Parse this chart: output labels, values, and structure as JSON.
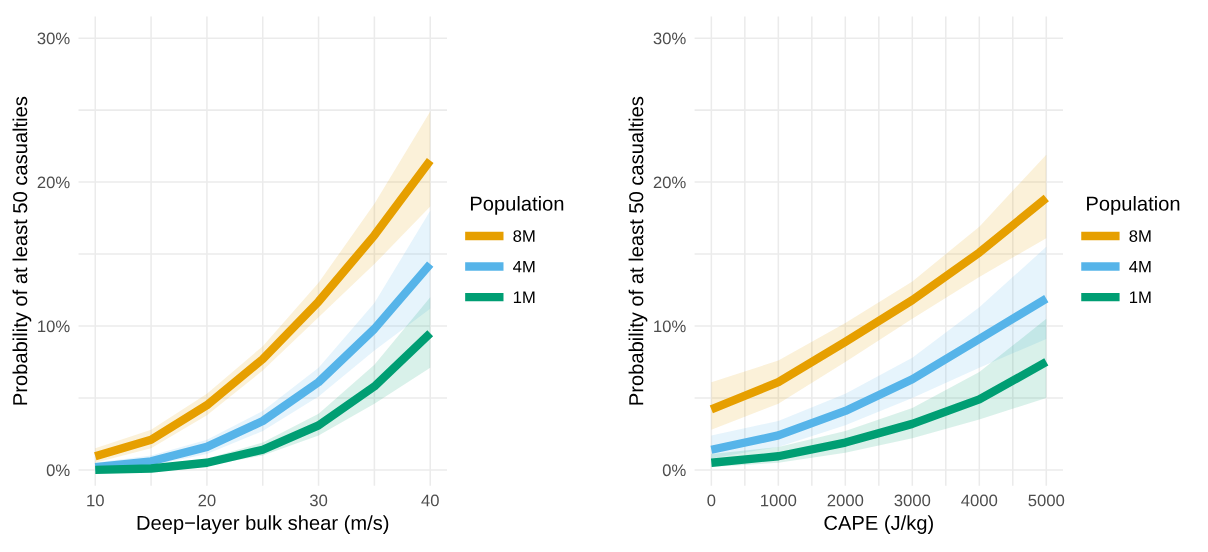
{
  "chart_data": [
    {
      "type": "line",
      "xlabel": "Deep−layer bulk shear (m/s)",
      "ylabel": "Probability of at least 50 casualties",
      "legend_title": "Population",
      "legend": "right",
      "grid": true,
      "line_style": "solid",
      "marker": "none",
      "x": [
        10,
        15,
        20,
        25,
        30,
        35,
        40
      ],
      "xlim": [
        8.5,
        41.5
      ],
      "xticks": [
        10,
        {
          "value": 15,
          "label": null
        },
        20,
        {
          "value": 25,
          "label": null
        },
        30,
        {
          "value": 35,
          "label": null
        },
        40
      ],
      "ylim": [
        -1.1,
        31.5
      ],
      "yticks": [
        {
          "value": 0,
          "label": "0%"
        },
        {
          "value": 5,
          "label": null
        },
        {
          "value": 10,
          "label": "10%"
        },
        {
          "value": 15,
          "label": null
        },
        {
          "value": 20,
          "label": "20%"
        },
        {
          "value": 25,
          "label": null
        },
        {
          "value": 30,
          "label": "30%"
        }
      ],
      "series": [
        {
          "name": "8M",
          "color": "#e69f00",
          "values": [
            0.95,
            2.1,
            4.5,
            7.7,
            11.7,
            16.3,
            21.5
          ],
          "lower": [
            0.5,
            1.5,
            3.8,
            6.9,
            10.6,
            14.3,
            18.3
          ],
          "upper": [
            1.5,
            2.8,
            5.3,
            8.6,
            13.0,
            18.5,
            24.9
          ]
        },
        {
          "name": "4M",
          "color": "#56b4e9",
          "values": [
            0.2,
            0.6,
            1.6,
            3.4,
            6.1,
            9.8,
            14.3
          ],
          "lower": [
            0.05,
            0.3,
            1.1,
            2.7,
            5.1,
            8.3,
            11.2
          ],
          "upper": [
            0.5,
            1.0,
            2.1,
            4.1,
            7.1,
            11.6,
            18.0
          ]
        },
        {
          "name": "1M",
          "color": "#009e73",
          "values": [
            0,
            0.1,
            0.5,
            1.4,
            3.1,
            5.8,
            9.5
          ],
          "lower": [
            0,
            0.05,
            0.3,
            1.0,
            2.4,
            4.6,
            7.1
          ],
          "upper": [
            0.1,
            0.3,
            0.8,
            1.9,
            3.9,
            7.3,
            12.0
          ]
        }
      ]
    },
    {
      "type": "line",
      "xlabel": "CAPE (J/kg)",
      "ylabel": "Probability of at least 50 casualties",
      "legend_title": "Population",
      "legend": "right",
      "grid": true,
      "line_style": "solid",
      "marker": "none",
      "x": [
        0,
        1000,
        2000,
        3000,
        4000,
        5000
      ],
      "xlim": [
        -250,
        5250
      ],
      "xticks": [
        0,
        {
          "value": 500,
          "label": null
        },
        1000,
        {
          "value": 1500,
          "label": null
        },
        2000,
        {
          "value": 2500,
          "label": null
        },
        3000,
        {
          "value": 3500,
          "label": null
        },
        4000,
        {
          "value": 4500,
          "label": null
        },
        5000
      ],
      "ylim": [
        -1.1,
        31.5
      ],
      "yticks": [
        {
          "value": 0,
          "label": "0%"
        },
        {
          "value": 5,
          "label": null
        },
        {
          "value": 10,
          "label": "10%"
        },
        {
          "value": 15,
          "label": null
        },
        {
          "value": 20,
          "label": "20%"
        },
        {
          "value": 25,
          "label": null
        },
        {
          "value": 30,
          "label": "30%"
        }
      ],
      "series": [
        {
          "name": "8M",
          "color": "#e69f00",
          "values": [
            4.2,
            6.1,
            8.9,
            11.8,
            15.1,
            18.9
          ],
          "lower": [
            2.8,
            4.6,
            7.5,
            10.5,
            13.4,
            16.1
          ],
          "upper": [
            6.1,
            7.6,
            10.2,
            13.1,
            16.9,
            21.9
          ]
        },
        {
          "name": "4M",
          "color": "#56b4e9",
          "values": [
            1.4,
            2.4,
            4.1,
            6.3,
            9.1,
            11.9
          ],
          "lower": [
            0.8,
            1.6,
            3.1,
            5.0,
            7.1,
            9.1
          ],
          "upper": [
            2.4,
            3.4,
            5.3,
            7.8,
            11.3,
            15.5
          ]
        },
        {
          "name": "1M",
          "color": "#009e73",
          "values": [
            0.5,
            0.95,
            1.9,
            3.2,
            4.9,
            7.5
          ],
          "lower": [
            0.2,
            0.5,
            1.2,
            2.2,
            3.5,
            5.0
          ],
          "upper": [
            1.1,
            1.6,
            2.7,
            4.3,
            6.8,
            10.5
          ]
        }
      ]
    }
  ]
}
